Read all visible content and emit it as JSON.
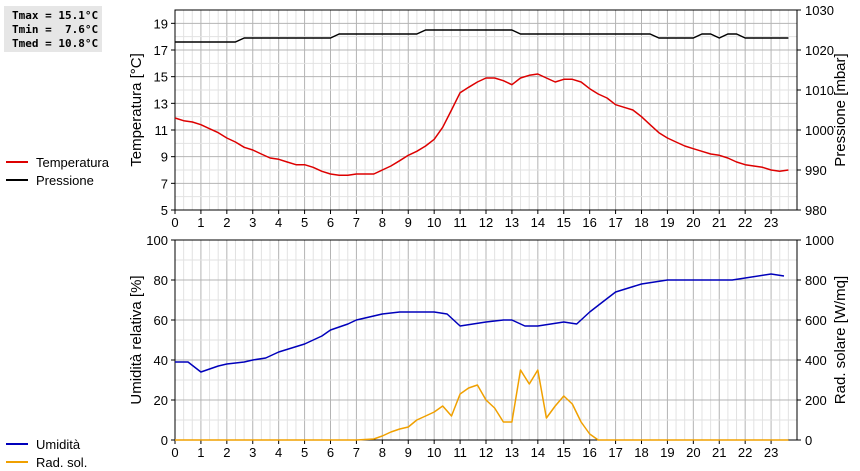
{
  "stats": {
    "tmax": "Tmax = 15.1°C",
    "tmin": "Tmin =  7.6°C",
    "tmed": "Tmed = 10.8°C"
  },
  "colors": {
    "temperature": "#dd0000",
    "pressure": "#000000",
    "humidity": "#0000bb",
    "solar": "#f0a000"
  },
  "chart_data": [
    {
      "type": "line",
      "x_ticks": [
        "0",
        "1",
        "2",
        "3",
        "4",
        "5",
        "6",
        "7",
        "8",
        "9",
        "10",
        "11",
        "12",
        "13",
        "14",
        "15",
        "16",
        "17",
        "18",
        "19",
        "20",
        "21",
        "22",
        "23"
      ],
      "xlim": [
        0,
        24
      ],
      "ylabel_left": "Temperatura [°C]",
      "ylabel_right": "Pressione [mbar]",
      "ylim_left": [
        5,
        20
      ],
      "yticks_left": [
        "5",
        "7",
        "9",
        "11",
        "13",
        "15",
        "17",
        "19"
      ],
      "ylim_right": [
        980,
        1030
      ],
      "yticks_right": [
        "980",
        "990",
        "1000",
        "1010",
        "1020",
        "1030"
      ],
      "grid": true,
      "legend_position": "left",
      "series": [
        {
          "name": "Temperatura",
          "axis": "left",
          "x": [
            0,
            0.33,
            0.67,
            1,
            1.33,
            1.67,
            2,
            2.33,
            2.67,
            3,
            3.33,
            3.67,
            4,
            4.33,
            4.67,
            5,
            5.33,
            5.67,
            6,
            6.33,
            6.67,
            7,
            7.33,
            7.67,
            8,
            8.33,
            8.67,
            9,
            9.33,
            9.67,
            10,
            10.33,
            10.67,
            11,
            11.33,
            11.67,
            12,
            12.33,
            12.67,
            13,
            13.33,
            13.67,
            14,
            14.33,
            14.67,
            15,
            15.33,
            15.67,
            16,
            16.33,
            16.67,
            17,
            17.33,
            17.67,
            18,
            18.33,
            18.67,
            19,
            19.33,
            19.67,
            20,
            20.33,
            20.67,
            21,
            21.33,
            21.67,
            22,
            22.33,
            22.67,
            23,
            23.33,
            23.67
          ],
          "values": [
            11.9,
            11.7,
            11.6,
            11.4,
            11.1,
            10.8,
            10.4,
            10.1,
            9.7,
            9.5,
            9.2,
            8.9,
            8.8,
            8.6,
            8.4,
            8.4,
            8.2,
            7.9,
            7.7,
            7.6,
            7.6,
            7.7,
            7.7,
            7.7,
            8.0,
            8.3,
            8.7,
            9.1,
            9.4,
            9.8,
            10.3,
            11.2,
            12.5,
            13.8,
            14.2,
            14.6,
            14.9,
            14.9,
            14.7,
            14.4,
            14.9,
            15.1,
            15.2,
            14.9,
            14.6,
            14.8,
            14.8,
            14.6,
            14.1,
            13.7,
            13.4,
            12.9,
            12.7,
            12.5,
            12.0,
            11.4,
            10.8,
            10.4,
            10.1,
            9.8,
            9.6,
            9.4,
            9.2,
            9.1,
            8.9,
            8.6,
            8.4,
            8.3,
            8.2,
            8.0,
            7.9,
            8.0
          ]
        },
        {
          "name": "Pressione",
          "axis": "right",
          "x": [
            0,
            0.67,
            1,
            1.67,
            2,
            2.33,
            2.67,
            3,
            4,
            5,
            5.67,
            6,
            6.33,
            6.67,
            7,
            8,
            9,
            9.33,
            9.67,
            10,
            11,
            12,
            13,
            13.33,
            13.67,
            14,
            15,
            16,
            17,
            18,
            18.33,
            18.67,
            19,
            19.67,
            20,
            20.33,
            20.67,
            21,
            21.33,
            21.67,
            22,
            22.67,
            23,
            23.67
          ],
          "values": [
            1022,
            1022,
            1022,
            1022,
            1022,
            1022,
            1023,
            1023,
            1023,
            1023,
            1023,
            1023,
            1024,
            1024,
            1024,
            1024,
            1024,
            1024,
            1025,
            1025,
            1025,
            1025,
            1025,
            1024,
            1024,
            1024,
            1024,
            1024,
            1024,
            1024,
            1024,
            1023,
            1023,
            1023,
            1023,
            1024,
            1024,
            1023,
            1024,
            1024,
            1023,
            1023,
            1023,
            1023
          ]
        }
      ]
    },
    {
      "type": "line",
      "x_ticks": [
        "0",
        "1",
        "2",
        "3",
        "4",
        "5",
        "6",
        "7",
        "8",
        "9",
        "10",
        "11",
        "12",
        "13",
        "14",
        "15",
        "16",
        "17",
        "18",
        "19",
        "20",
        "21",
        "22",
        "23"
      ],
      "xlim": [
        0,
        24
      ],
      "ylabel_left": "Umidità relativa [%]",
      "ylabel_right": "Rad. solare [W/mq]",
      "ylim_left": [
        0,
        100
      ],
      "yticks_left": [
        "0",
        "20",
        "40",
        "60",
        "80",
        "100"
      ],
      "ylim_right": [
        0,
        1000
      ],
      "yticks_right": [
        "0",
        "200",
        "400",
        "600",
        "800",
        "1000"
      ],
      "grid": true,
      "legend_position": "left",
      "series": [
        {
          "name": "Umidità",
          "axis": "left",
          "x": [
            0,
            0.5,
            1,
            1.67,
            2,
            2.67,
            3,
            3.5,
            4,
            5,
            5.67,
            6,
            6.67,
            7,
            8,
            8.67,
            9,
            10,
            10.5,
            11,
            12,
            12.67,
            13,
            13.5,
            14,
            15,
            15.5,
            16,
            16.5,
            17,
            17.5,
            18,
            18.5,
            19,
            19.5,
            20,
            21,
            21.5,
            22,
            23,
            23.5
          ],
          "values": [
            39,
            39,
            34,
            37,
            38,
            39,
            40,
            41,
            44,
            48,
            52,
            55,
            58,
            60,
            63,
            64,
            64,
            64,
            63,
            57,
            59,
            60,
            60,
            57,
            57,
            59,
            58,
            64,
            69,
            74,
            76,
            78,
            79,
            80,
            80,
            80,
            80,
            80,
            81,
            83,
            82
          ]
        },
        {
          "name": "Rad. sol.",
          "axis": "right",
          "x": [
            0,
            1,
            2,
            3,
            4,
            5,
            6,
            7,
            7.67,
            8,
            8.33,
            8.67,
            9,
            9.33,
            9.67,
            10,
            10.33,
            10.67,
            11,
            11.33,
            11.67,
            12,
            12.33,
            12.67,
            13,
            13.33,
            13.67,
            14,
            14.33,
            14.67,
            15,
            15.33,
            15.67,
            16,
            16.33,
            16.67,
            17,
            18,
            19,
            20,
            21,
            22,
            23,
            23.67
          ],
          "values": [
            0,
            0,
            0,
            0,
            0,
            0,
            0,
            0,
            5,
            20,
            40,
            55,
            65,
            100,
            120,
            140,
            170,
            120,
            230,
            260,
            275,
            200,
            160,
            90,
            90,
            350,
            280,
            350,
            110,
            170,
            220,
            180,
            90,
            30,
            0,
            0,
            0,
            0,
            0,
            0,
            0,
            0,
            0,
            0
          ]
        }
      ]
    }
  ]
}
